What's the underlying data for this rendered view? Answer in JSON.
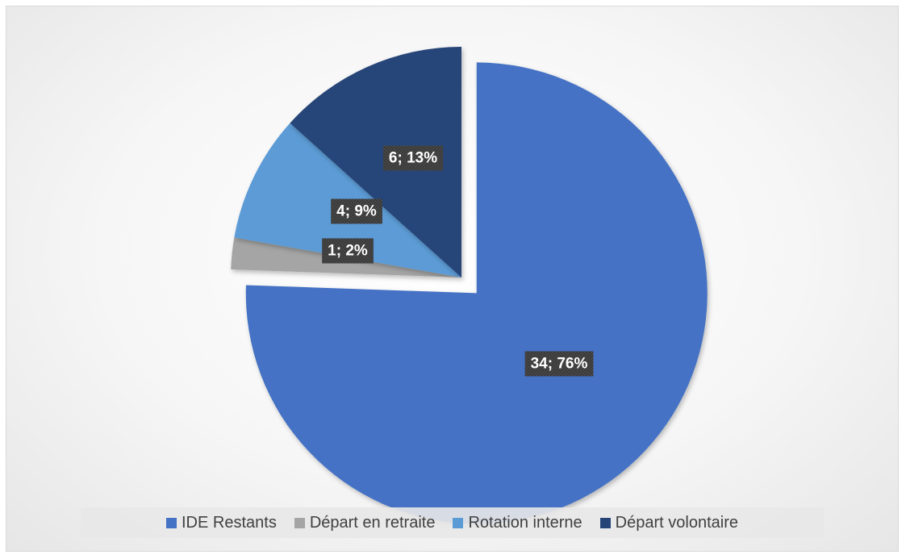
{
  "chart_data": {
    "type": "pie",
    "title": "",
    "categories": [
      "IDE Restants",
      "Départ en retraite",
      "Rotation interne",
      "Départ volontaire"
    ],
    "values": [
      34,
      1,
      4,
      6
    ],
    "data_labels": [
      "34; 76%",
      "1; 2%",
      "4; 9%",
      "6; 13%"
    ],
    "colors": [
      "#4472C4",
      "#A5A5A5",
      "#5B9BD5",
      "#264478"
    ],
    "exploded": [
      true,
      false,
      false,
      false
    ],
    "legend_position": "bottom",
    "start_angle_deg": 0,
    "direction": "clockwise"
  }
}
